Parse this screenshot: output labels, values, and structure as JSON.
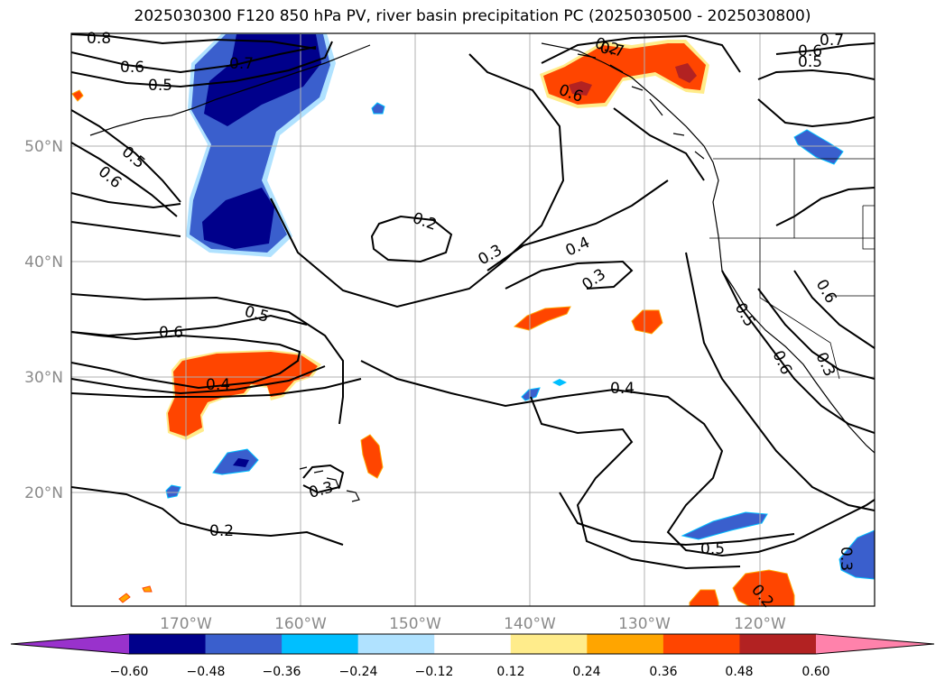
{
  "title": "2025030300 F120 850 hPa PV, river basin precipitation PC (2025030500 - 2025030800)",
  "map": {
    "lat_labels": [
      "50°N",
      "40°N",
      "30°N",
      "20°N"
    ],
    "lon_labels": [
      "170°W",
      "160°W",
      "150°W",
      "140°W",
      "130°W",
      "120°W"
    ],
    "contour_labels": [
      "0.8",
      "0.7",
      "0.6",
      "0.5",
      "0.5",
      "0.6",
      "0.7",
      "0.6",
      "0.5",
      "0.7",
      "0.6",
      "0.5",
      "0.6",
      "0.2",
      "0.3",
      "0.4",
      "0.3",
      "0.5",
      "0.6",
      "0.4",
      "0.4",
      "0.3",
      "0.2",
      "0.5",
      "0.6",
      "0.3",
      "0.2",
      "0.3",
      "0.2"
    ]
  },
  "colorbar": {
    "ticks": [
      "−0.60",
      "−0.48",
      "−0.36",
      "−0.24",
      "−0.12",
      "0.12",
      "0.24",
      "0.36",
      "0.48",
      "0.60"
    ],
    "colors": [
      "#9932cc",
      "#00008b",
      "#3a5fcd",
      "#00bfff",
      "#b0e2ff",
      "#ffffff",
      "#ffec8b",
      "#ffa500",
      "#ff4500",
      "#b22222",
      "#ff82ab"
    ]
  }
}
